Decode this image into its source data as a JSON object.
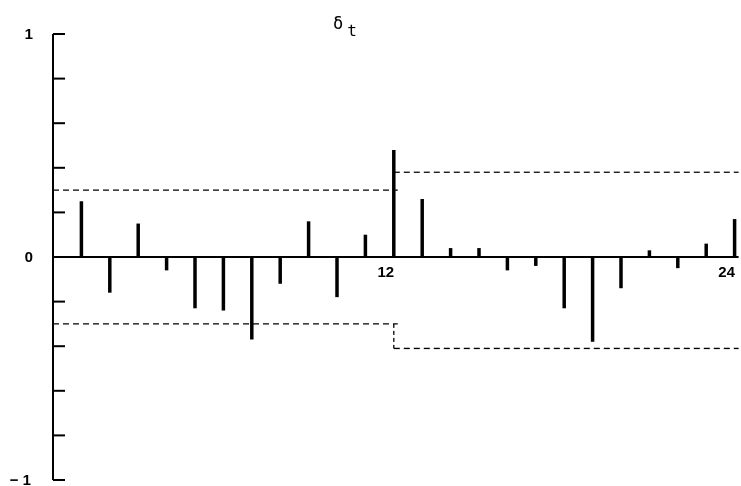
{
  "chart_data": {
    "type": "bar",
    "title": "δ",
    "title_subscript": "t",
    "xlabel": "",
    "ylabel": "",
    "ylim": [
      -1,
      1
    ],
    "xlim": [
      0,
      24
    ],
    "y_ticks": [
      -1,
      -0.8,
      -0.6,
      -0.4,
      -0.2,
      0,
      0.2,
      0.4,
      0.6,
      0.8,
      1
    ],
    "y_tick_labels": [
      {
        "value": 1,
        "label": "1"
      },
      {
        "value": 0,
        "label": "0"
      },
      {
        "value": -1,
        "label": "− 1"
      }
    ],
    "x_tick_labels": [
      {
        "value": 12,
        "label": "12"
      },
      {
        "value": 24,
        "label": "24"
      }
    ],
    "lags": [
      1,
      2,
      3,
      4,
      5,
      6,
      7,
      8,
      9,
      10,
      11,
      12,
      13,
      14,
      15,
      16,
      17,
      18,
      19,
      20,
      21,
      22,
      23,
      24
    ],
    "values": [
      0.25,
      -0.16,
      0.15,
      -0.06,
      -0.23,
      -0.24,
      -0.37,
      -0.12,
      0.16,
      -0.18,
      0.1,
      0.48,
      0.26,
      0.04,
      0.04,
      -0.06,
      -0.04,
      -0.23,
      -0.38,
      -0.14,
      0.03,
      -0.05,
      0.06,
      0.17
    ],
    "confidence_bands": [
      {
        "x": [
          0,
          12
        ],
        "upper": 0.3,
        "lower": -0.3
      },
      {
        "x": [
          12,
          24
        ],
        "upper": 0.38,
        "lower": -0.41
      }
    ],
    "grid": false,
    "legend": "none"
  }
}
